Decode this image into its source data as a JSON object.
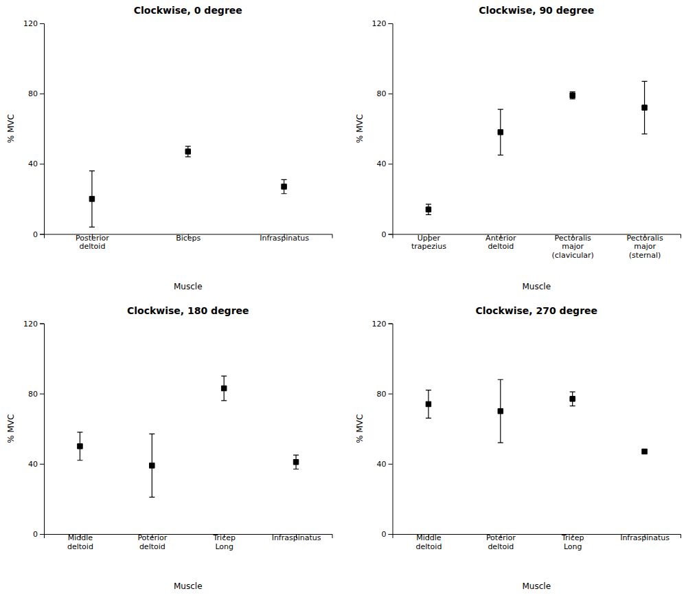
{
  "chart_data": [
    {
      "type": "errorbar",
      "title": "Clockwise, 0 degree",
      "xlabel": "Muscle",
      "ylabel": "% MVC",
      "categories": [
        "Posterior\ndeltoid",
        "Biceps",
        "Infraspinatus"
      ],
      "values": [
        20,
        47,
        27
      ],
      "errors": [
        16,
        3,
        4
      ],
      "ylim": [
        0,
        120
      ],
      "yticks": [
        0,
        40,
        80,
        120
      ],
      "marker": "square",
      "color": "black"
    },
    {
      "type": "errorbar",
      "title": "Clockwise, 90 degree",
      "xlabel": "Muscle",
      "ylabel": "% MVC",
      "categories": [
        "Upper\ntrapezius",
        "Anterior\ndeltoid",
        "Pectoralis\nmajor\n(clavicular)",
        "Pectoralis\nmajor\n(sternal)"
      ],
      "values": [
        14,
        58,
        79,
        72
      ],
      "errors": [
        3,
        13,
        2,
        15
      ],
      "ylim": [
        0,
        120
      ],
      "yticks": [
        0,
        40,
        80,
        120
      ],
      "marker": "square",
      "color": "black"
    },
    {
      "type": "errorbar",
      "title": "Clockwise, 180 degree",
      "xlabel": "Muscle",
      "ylabel": "% MVC",
      "categories": [
        "Middle\ndeltoid",
        "Poterior\ndeltoid",
        "Tricep\nLong",
        "Infraspinatus"
      ],
      "values": [
        50,
        39,
        83,
        41
      ],
      "errors": [
        8,
        18,
        7,
        4
      ],
      "ylim": [
        0,
        120
      ],
      "yticks": [
        0,
        40,
        80,
        120
      ],
      "marker": "square",
      "color": "black"
    },
    {
      "type": "errorbar",
      "title": "Clockwise, 270 degree",
      "xlabel": "Muscle",
      "ylabel": "% MVC",
      "categories": [
        "Middle\ndeltoid",
        "Poterior\ndeltoid",
        "Tricep\nLong",
        "Infraspinatus"
      ],
      "values": [
        74,
        70,
        77,
        47
      ],
      "errors": [
        8,
        18,
        4,
        1
      ],
      "ylim": [
        0,
        120
      ],
      "yticks": [
        0,
        40,
        80,
        120
      ],
      "marker": "square",
      "color": "black"
    }
  ]
}
